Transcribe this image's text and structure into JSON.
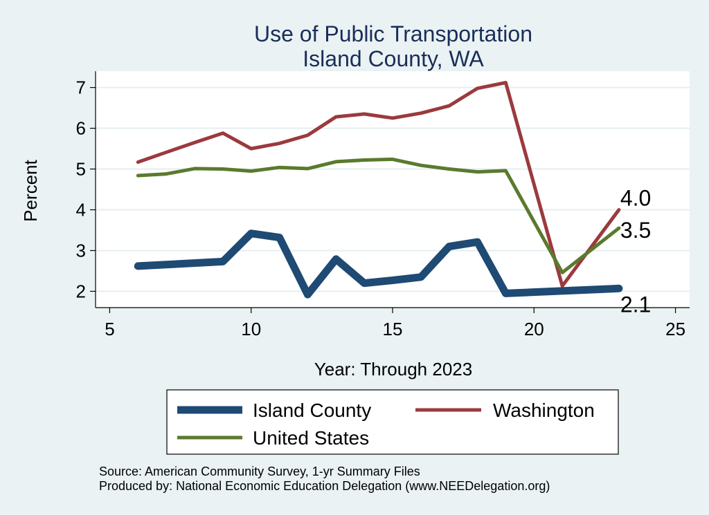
{
  "chart_data": {
    "type": "line",
    "title": [
      "Use of Public Transportation",
      "Island County, WA"
    ],
    "xlabel": "Year: Through 2023",
    "ylabel": "Percent",
    "xlim": [
      4.5,
      25.5
    ],
    "ylim": [
      1.6,
      7.4
    ],
    "xticks": [
      5,
      10,
      15,
      20,
      25
    ],
    "yticks": [
      2,
      3,
      4,
      5,
      6,
      7
    ],
    "grid": true,
    "legend_position": "bottom",
    "series": [
      {
        "name": "Washington",
        "color": "#9b3a3d",
        "weight": "thin",
        "x": [
          6,
          7,
          8,
          9,
          10,
          11,
          12,
          13,
          14,
          15,
          16,
          17,
          18,
          19,
          21,
          23
        ],
        "values": [
          5.17,
          5.41,
          5.65,
          5.88,
          5.5,
          5.63,
          5.83,
          6.28,
          6.35,
          6.25,
          6.37,
          6.55,
          6.98,
          7.12,
          2.13,
          4.0
        ],
        "end_label": "4.0"
      },
      {
        "name": "United States",
        "color": "#5a7a2e",
        "weight": "thin",
        "x": [
          6,
          7,
          8,
          9,
          10,
          11,
          12,
          13,
          14,
          15,
          16,
          17,
          18,
          19,
          21,
          23
        ],
        "values": [
          4.84,
          4.88,
          5.01,
          5.0,
          4.95,
          5.04,
          5.01,
          5.18,
          5.22,
          5.24,
          5.09,
          5.0,
          4.93,
          4.96,
          2.46,
          3.55
        ],
        "end_label": "3.5"
      },
      {
        "name": "Island County",
        "color": "#1e4a73",
        "weight": "thick",
        "x": [
          6,
          9,
          10,
          11,
          12,
          13,
          14,
          15,
          16,
          17,
          18,
          19,
          23
        ],
        "values": [
          2.62,
          2.73,
          3.42,
          3.32,
          1.92,
          2.79,
          2.2,
          2.27,
          2.35,
          3.1,
          3.21,
          1.95,
          2.07
        ],
        "end_label": "2.1"
      }
    ],
    "legend": [
      {
        "name": "Island County",
        "color": "#1e4a73",
        "weight": "thick"
      },
      {
        "name": "Washington",
        "color": "#9b3a3d",
        "weight": "thin"
      },
      {
        "name": "United States",
        "color": "#5a7a2e",
        "weight": "thin"
      }
    ]
  },
  "notes": {
    "source": "Source: American Community Survey, 1-yr Summary Files",
    "produced": "Produced by: National Economic Education Delegation (www.NEEDelegation.org)"
  }
}
